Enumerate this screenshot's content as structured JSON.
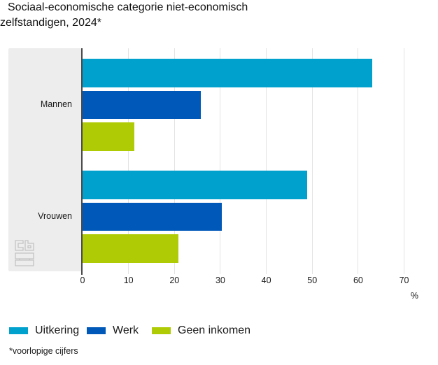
{
  "title": "Sociaal-economische categorie niet-economisch zelfstandigen, 2024*",
  "footnote": "*voorlopige cijfers",
  "colors": {
    "uitkering": "#00a1cd",
    "werk": "#0058b8",
    "geen_inkomen": "#afcb05",
    "category_band": "#ededed",
    "axis_line": "#4a4a4a",
    "gridline": "#e3e3e3",
    "logo_gray": "#c4c4c4"
  },
  "chart_data": {
    "type": "bar",
    "orientation": "horizontal",
    "title": "Sociaal-economische categorie niet-economisch zelfstandigen, 2024*",
    "categories": [
      "Mannen",
      "Vrouwen"
    ],
    "series": [
      {
        "name": "Uitkering",
        "color": "#00a1cd",
        "values": [
          63.0,
          48.9
        ]
      },
      {
        "name": "Werk",
        "color": "#0058b8",
        "values": [
          25.7,
          30.3
        ]
      },
      {
        "name": "Geen inkomen",
        "color": "#afcb05",
        "values": [
          11.2,
          20.8
        ]
      }
    ],
    "xlabel": "%",
    "x_ticks": [
      0,
      10,
      20,
      30,
      40,
      50,
      60,
      70
    ],
    "xlim": [
      0,
      75
    ],
    "grid": true,
    "legend_position": "bottom"
  }
}
